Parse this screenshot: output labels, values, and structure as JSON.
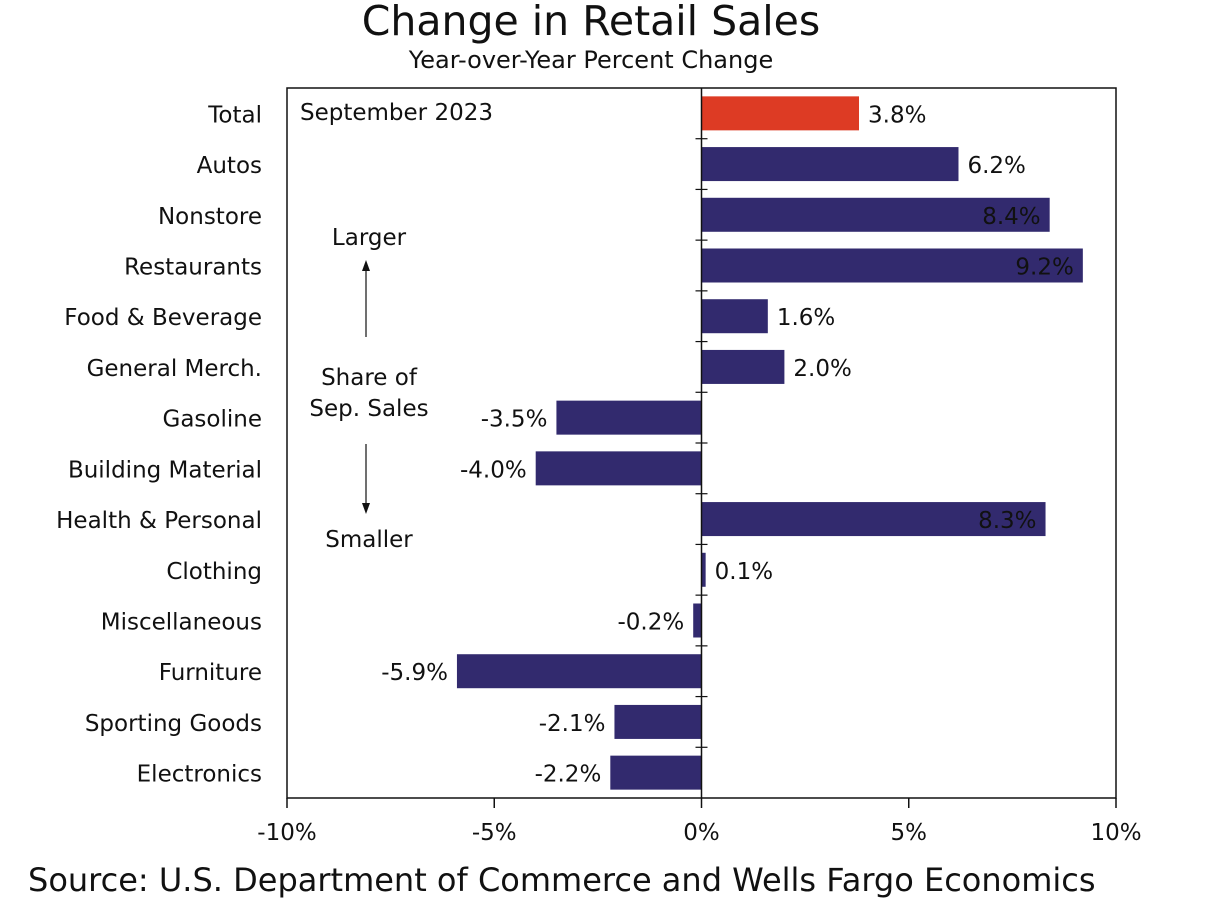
{
  "colors": {
    "total": "#dd3b24",
    "bar": "#322a6e",
    "axis": "#111111"
  },
  "chart_data": {
    "type": "bar",
    "orientation": "horizontal",
    "title": "Change in Retail Sales",
    "subtitle": "Year-over-Year Percent Change",
    "annotation": "September 2023",
    "side_note": {
      "top": "Larger",
      "middle": "Share of\nSep. Sales",
      "bottom": "Smaller"
    },
    "categories": [
      "Total",
      "Autos",
      "Nonstore",
      "Restaurants",
      "Food & Beverage",
      "General Merch.",
      "Gasoline",
      "Building Material",
      "Health & Personal",
      "Clothing",
      "Miscellaneous",
      "Furniture",
      "Sporting Goods",
      "Electronics"
    ],
    "values": [
      3.8,
      6.2,
      8.4,
      9.2,
      1.6,
      2.0,
      -3.5,
      -4.0,
      8.3,
      0.1,
      -0.2,
      -5.9,
      -2.1,
      -2.2
    ],
    "data_labels": [
      "3.8%",
      "6.2%",
      "8.4%",
      "9.2%",
      "1.6%",
      "2.0%",
      "-3.5%",
      "-4.0%",
      "8.3%",
      "0.1%",
      "-0.2%",
      "-5.9%",
      "-2.1%",
      "-2.2%"
    ],
    "xlim": [
      -10,
      10
    ],
    "x_ticks": [
      -10,
      -5,
      0,
      5,
      10
    ],
    "x_tick_labels": [
      "-10%",
      "-5%",
      "0%",
      "5%",
      "10%"
    ],
    "grid": false,
    "legend": "none"
  },
  "source": "Source: U.S. Department of Commerce and Wells Fargo Economics"
}
